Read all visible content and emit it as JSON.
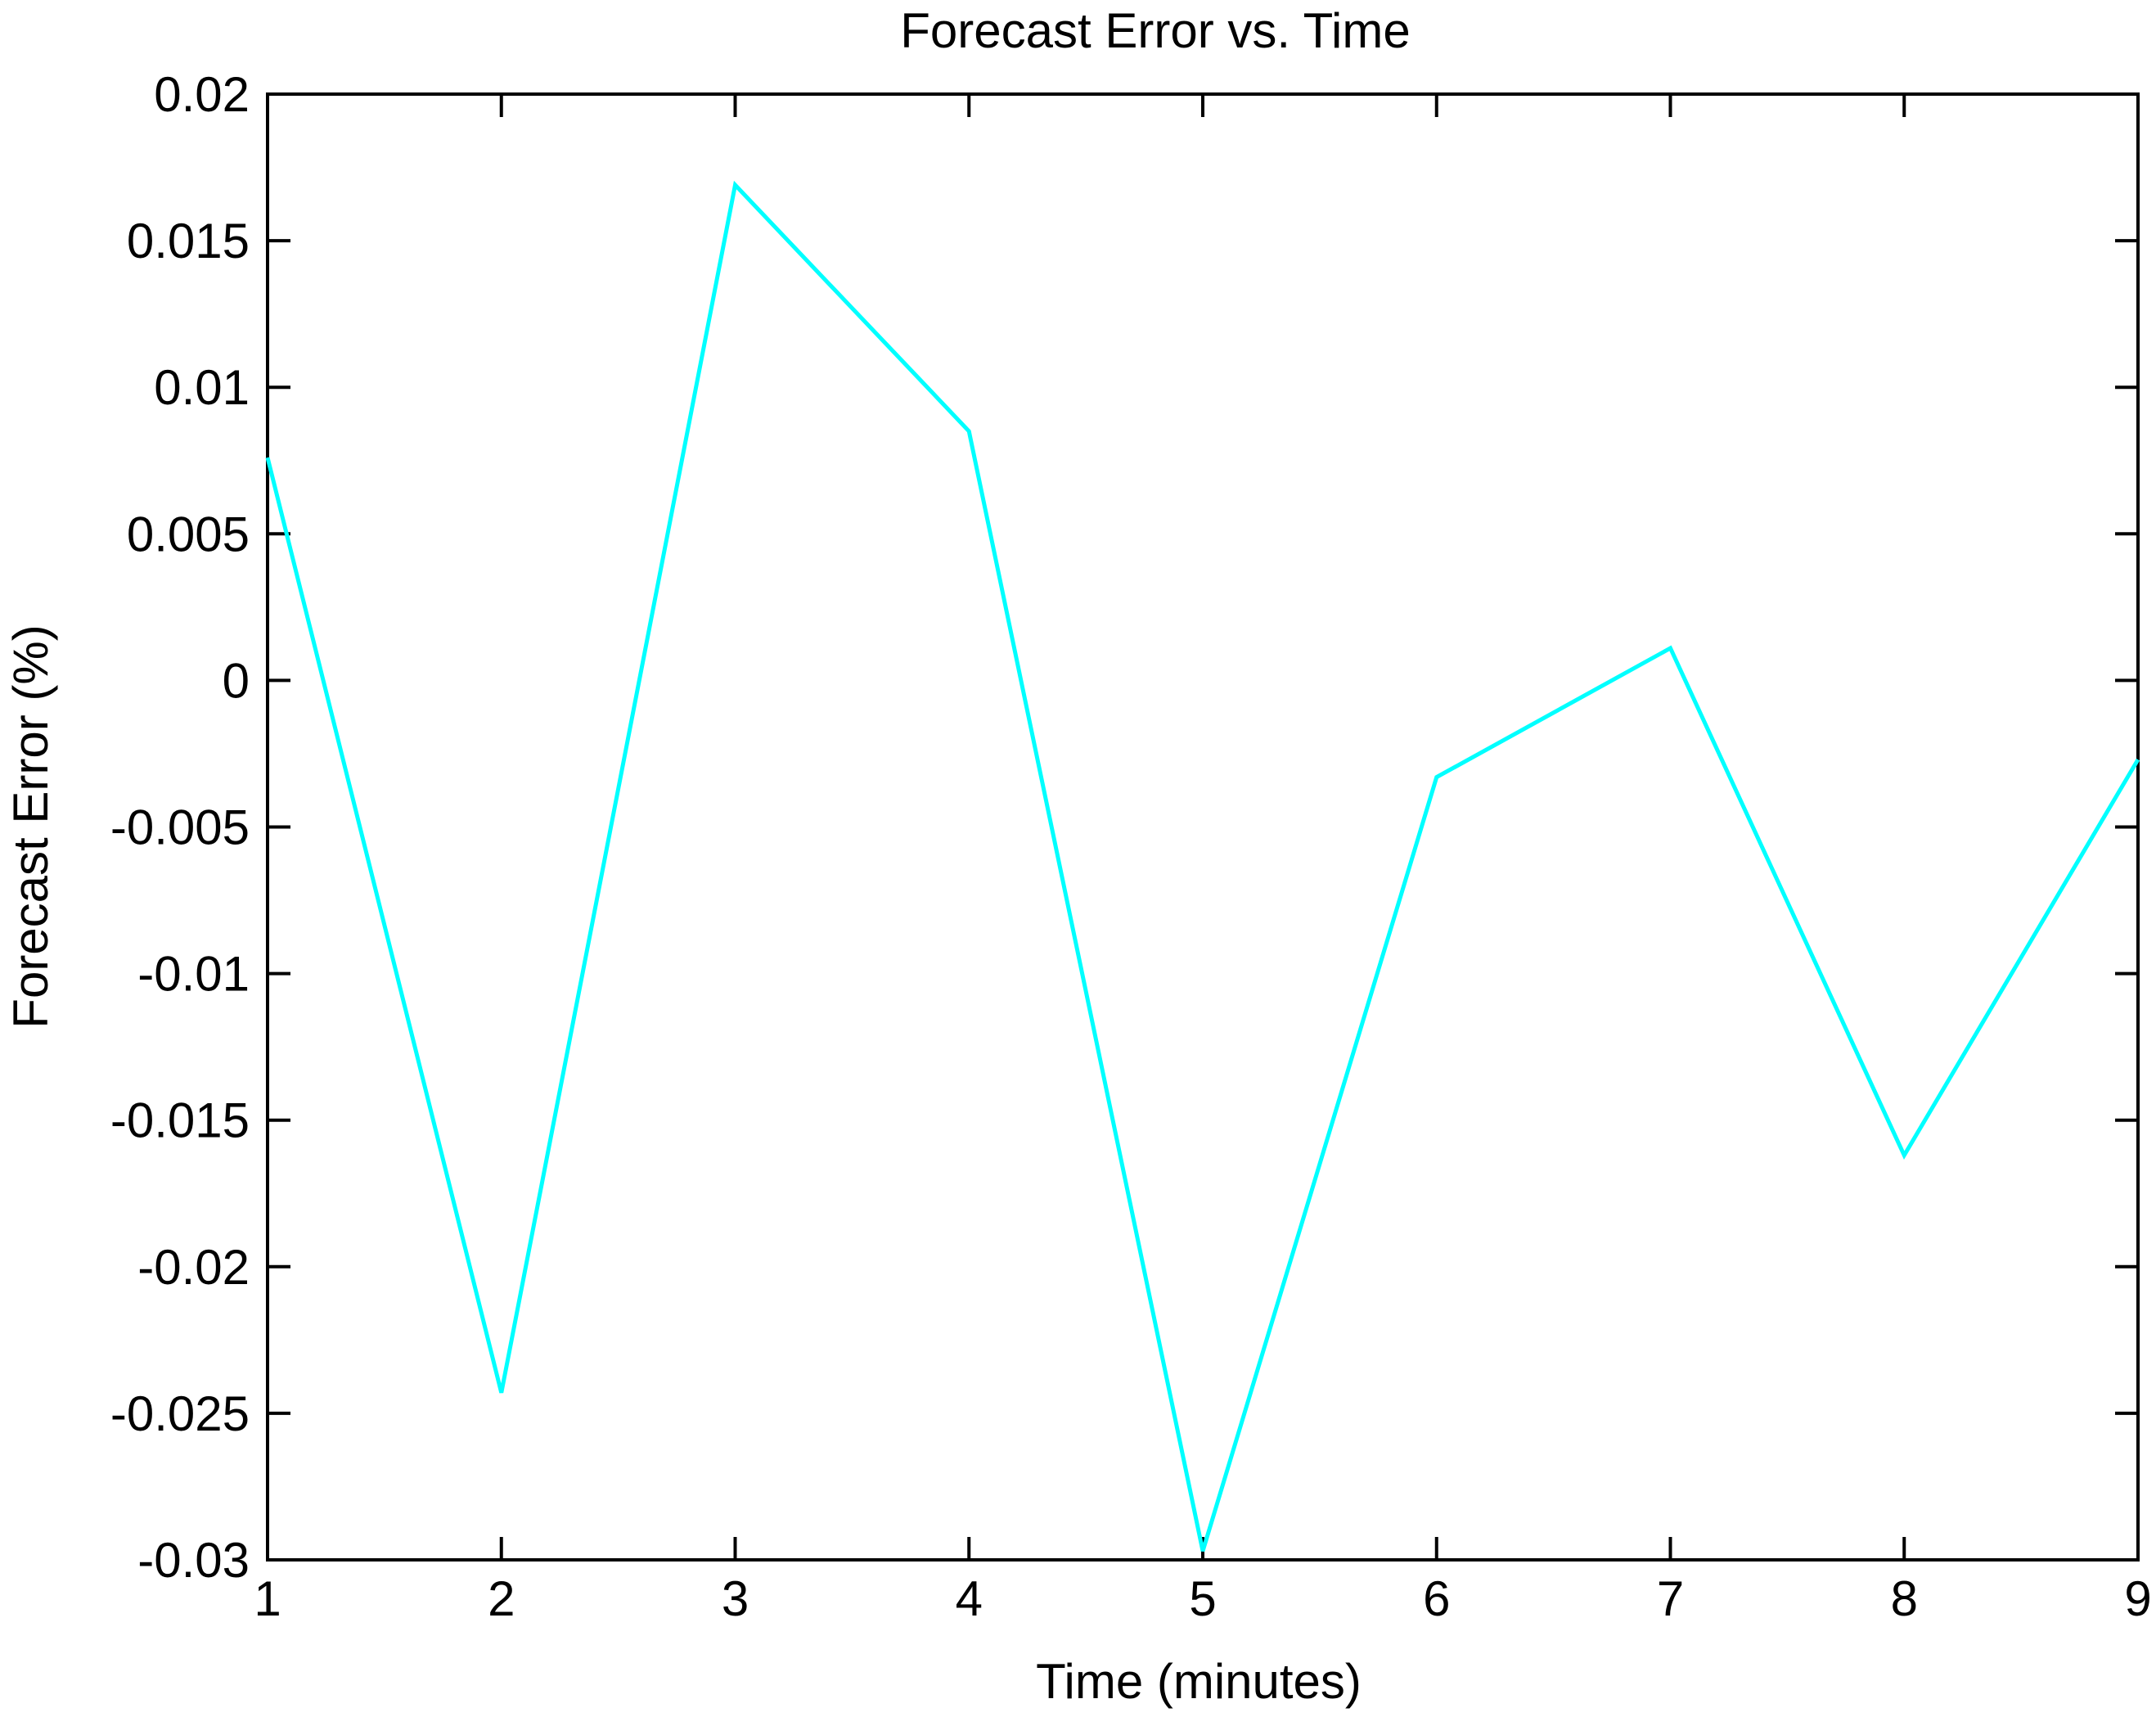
{
  "chart_data": {
    "type": "line",
    "title": "Forecast Error vs. Time",
    "xlabel": "Time (minutes)",
    "ylabel": "Forecast Error (%)",
    "xlim": [
      1,
      9
    ],
    "ylim": [
      -0.03,
      0.02
    ],
    "grid": false,
    "xticks": [
      {
        "value": 1,
        "label": "1"
      },
      {
        "value": 2,
        "label": "2"
      },
      {
        "value": 3,
        "label": "3"
      },
      {
        "value": 4,
        "label": "4"
      },
      {
        "value": 5,
        "label": "5"
      },
      {
        "value": 6,
        "label": "6"
      },
      {
        "value": 7,
        "label": "7"
      },
      {
        "value": 8,
        "label": "8"
      },
      {
        "value": 9,
        "label": "9"
      }
    ],
    "yticks": [
      {
        "value": 0.02,
        "label": "0.02"
      },
      {
        "value": 0.015,
        "label": "0.015"
      },
      {
        "value": 0.01,
        "label": "0.01"
      },
      {
        "value": 0.005,
        "label": "0.005"
      },
      {
        "value": 0,
        "label": "0"
      },
      {
        "value": -0.005,
        "label": "-0.005"
      },
      {
        "value": -0.01,
        "label": "-0.01"
      },
      {
        "value": -0.015,
        "label": "-0.015"
      },
      {
        "value": -0.02,
        "label": "-0.02"
      },
      {
        "value": -0.025,
        "label": "-0.025"
      },
      {
        "value": -0.03,
        "label": "-0.03"
      }
    ],
    "series": [
      {
        "color": "#00ffff",
        "x": [
          1,
          2,
          3,
          4,
          5,
          6,
          7,
          8,
          9
        ],
        "y": [
          0.0076,
          -0.0243,
          0.0169,
          0.0085,
          -0.0297,
          -0.0033,
          0.0011,
          -0.0162,
          -0.0027
        ]
      }
    ]
  }
}
